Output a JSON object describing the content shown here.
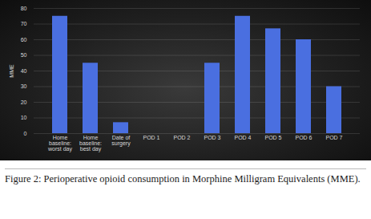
{
  "chart_data": {
    "type": "bar",
    "y_label": "MME",
    "categories": [
      "Home baseline: worst day",
      "Home baseline: best day",
      "Date of surgery",
      "POD 1",
      "POD 2",
      "POD 3",
      "POD 4",
      "POD 5",
      "POD 6",
      "POD 7"
    ],
    "values": [
      75,
      45,
      7,
      0,
      0,
      45,
      75,
      67,
      60,
      30
    ],
    "color": "#4a6fe0",
    "ylim": [
      0,
      80
    ],
    "yticks": [
      0,
      10,
      20,
      30,
      40,
      50,
      60,
      70,
      80
    ],
    "grid": true,
    "caption": "Figure 2: Perioperative opioid consumption in Morphine Milligram Equivalents (MME)."
  }
}
